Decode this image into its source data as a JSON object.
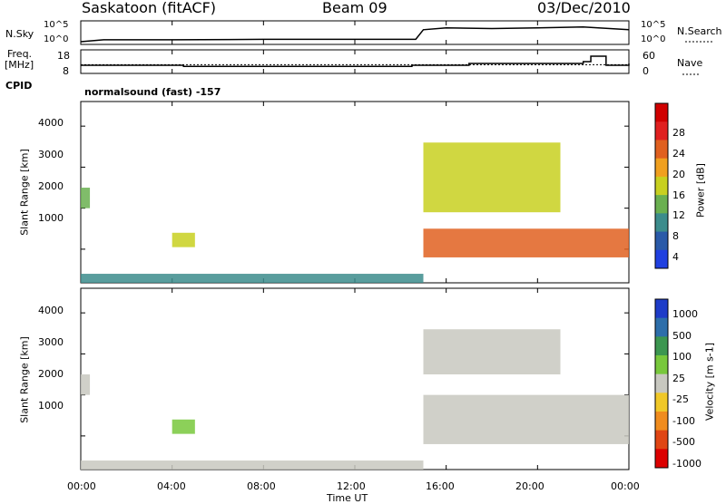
{
  "header": {
    "station": "Saskatoon (fitACF)",
    "beam": "Beam 09",
    "date": "03/Dec/2010"
  },
  "top_panel": {
    "left_label": "N.Sky",
    "right_label": "N.Search",
    "y_ticks": [
      "10^5",
      "10^0"
    ],
    "right_ticks": [
      "10^5",
      "10^0"
    ]
  },
  "freq_panel": {
    "left_label_1": "Freq.",
    "left_label_2": "[MHz]",
    "y_ticks": [
      "18",
      "8"
    ],
    "right_label": "Nave",
    "right_ticks": [
      "60",
      "0"
    ],
    "cpid_label": "CPID",
    "cpid_text": "normalsound (fast) -157"
  },
  "power_panel": {
    "ylabel": "Slant Range [km]",
    "y_ticks": [
      "4000",
      "3000",
      "2000",
      "1000"
    ],
    "colorbar_label": "Power [dB]",
    "colorbar_ticks": [
      "28",
      "24",
      "20",
      "16",
      "12",
      "8",
      "4"
    ],
    "colors": [
      "#2040e0",
      "#2a5aa8",
      "#3c8c8c",
      "#6ab050",
      "#c8d020",
      "#f0a020",
      "#e06020",
      "#e02020",
      "#d00000"
    ]
  },
  "velocity_panel": {
    "ylabel": "Slant Range [km]",
    "y_ticks": [
      "4000",
      "3000",
      "2000",
      "1000"
    ],
    "colorbar_label": "Velocity [m s-1]",
    "colorbar_ticks": [
      "1000",
      "500",
      "100",
      "25",
      "-25",
      "-100",
      "-500",
      "-1000"
    ],
    "colors": [
      "#1e3cc8",
      "#2d6eaa",
      "#3c9650",
      "#78c83c",
      "#c8c8c0",
      "#f0c828",
      "#f08c1e",
      "#e04614",
      "#dc0000"
    ]
  },
  "x_axis": {
    "label": "Time UT",
    "ticks": [
      "00:00",
      "04:00",
      "08:00",
      "12:00",
      "16:00",
      "20:00",
      "00:00"
    ]
  },
  "chart_data": [
    {
      "type": "line",
      "name": "N.Sky / N.Search",
      "x": [
        "00:00",
        "01:00",
        "02:00",
        "04:00",
        "08:00",
        "12:00",
        "14:40",
        "15:00",
        "16:00",
        "18:00",
        "20:00",
        "22:00",
        "24:00"
      ],
      "values": [
        1,
        3,
        3,
        3,
        4,
        4,
        4,
        1000,
        3000,
        2000,
        3000,
        5000,
        1000
      ]
    },
    {
      "type": "line",
      "name": "Freq. [MHz]",
      "x": [
        "00:00",
        "04:00",
        "04:30",
        "08:00",
        "12:00",
        "14:00",
        "14:30",
        "17:00",
        "18:30",
        "21:00",
        "22:00",
        "22:20",
        "23:00",
        "24:00"
      ],
      "values": [
        11,
        11,
        10.4,
        10.4,
        10.4,
        10.4,
        11,
        12,
        12,
        12,
        13,
        16,
        11,
        12
      ]
    },
    {
      "type": "heatmap",
      "title": "Power [dB]",
      "xlabel": "Time UT",
      "ylabel": "Slant Range [km]",
      "xlim": [
        0,
        24
      ],
      "ylim": [
        180,
        4600
      ],
      "color_scale": [
        0,
        30
      ],
      "regions": [
        {
          "t": [
            0.0,
            0.4
          ],
          "r": [
            2000,
            2500
          ],
          "level": 10
        },
        {
          "t": [
            0.0,
            15.0
          ],
          "r": [
            180,
            400
          ],
          "level": 6
        },
        {
          "t": [
            4.0,
            5.0
          ],
          "r": [
            1050,
            1400
          ],
          "level": 14
        },
        {
          "t": [
            15.0,
            24.0
          ],
          "r": [
            800,
            1500
          ],
          "level": 24
        },
        {
          "t": [
            15.0,
            21.0
          ],
          "r": [
            1900,
            3600
          ],
          "level": 14
        }
      ]
    },
    {
      "type": "heatmap",
      "title": "Velocity [m s-1]",
      "xlabel": "Time UT",
      "ylabel": "Slant Range [km]",
      "xlim": [
        0,
        24
      ],
      "ylim": [
        180,
        4600
      ],
      "color_scale": [
        -1000,
        1000
      ],
      "regions": [
        {
          "t": [
            0.0,
            0.4
          ],
          "r": [
            2000,
            2500
          ],
          "level": 0
        },
        {
          "t": [
            0.0,
            15.0
          ],
          "r": [
            180,
            400
          ],
          "level": -50
        },
        {
          "t": [
            4.0,
            5.0
          ],
          "r": [
            1050,
            1400
          ],
          "level": 150
        },
        {
          "t": [
            15.0,
            24.0
          ],
          "r": [
            800,
            2000
          ],
          "level": 0
        },
        {
          "t": [
            15.0,
            21.0
          ],
          "r": [
            2500,
            3600
          ],
          "level": -100
        }
      ]
    }
  ]
}
